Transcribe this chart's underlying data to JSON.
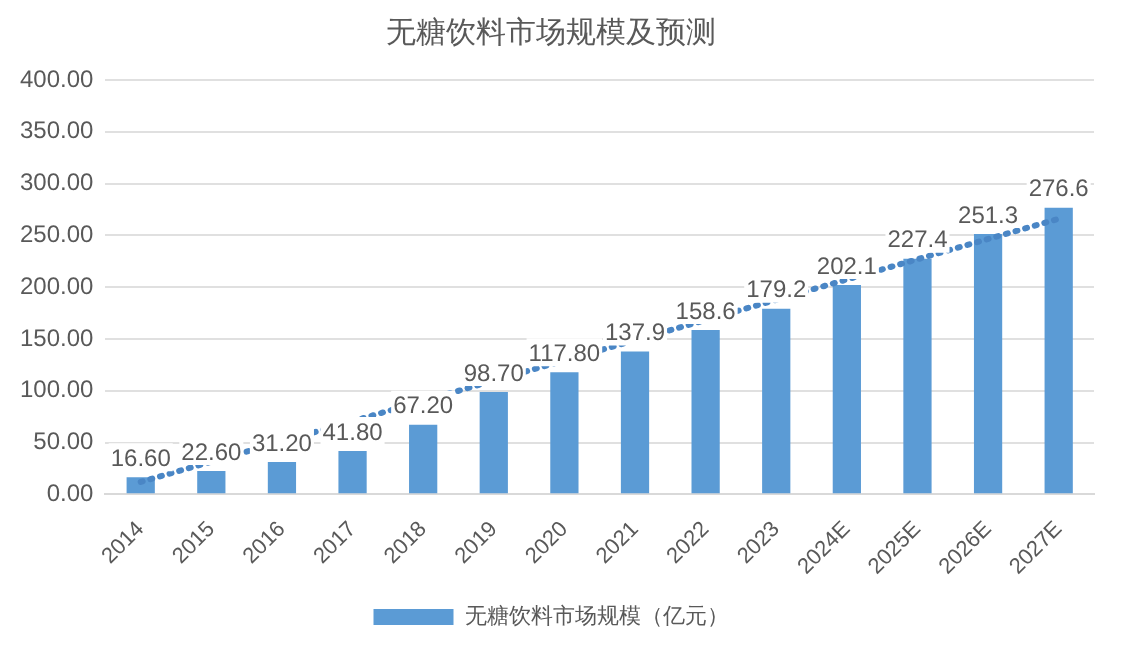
{
  "chart_data": {
    "type": "bar",
    "title": "无糖饮料市场规模及预测",
    "categories": [
      "2014",
      "2015",
      "2016",
      "2017",
      "2018",
      "2019",
      "2020",
      "2021",
      "2022",
      "2023",
      "2024E",
      "2025E",
      "2026E",
      "2027E"
    ],
    "series": [
      {
        "name": "无糖饮料市场规模（亿元）",
        "color": "#5b9bd5",
        "values": [
          16.6,
          22.6,
          31.2,
          41.8,
          67.2,
          98.7,
          117.8,
          137.9,
          158.6,
          179.2,
          202.1,
          227.4,
          251.3,
          276.6
        ],
        "value_labels": [
          "16.60",
          "22.60",
          "31.20",
          "41.80",
          "67.20",
          "98.70",
          "117.80",
          "137.9",
          "158.6",
          "179.2",
          "202.1",
          "227.4",
          "251.3",
          "276.6"
        ]
      },
      {
        "type": "line",
        "color": "#4a86c5",
        "line_style": "dotted",
        "marker": "none",
        "values": [
          12,
          null,
          null,
          null,
          null,
          null,
          null,
          null,
          null,
          null,
          null,
          null,
          null,
          266
        ]
      }
    ],
    "ylim": [
      0,
      400
    ],
    "yticks": [
      {
        "value": 0,
        "label": "0.00"
      },
      {
        "value": 50,
        "label": "50.00"
      },
      {
        "value": 100,
        "label": "100.00"
      },
      {
        "value": 150,
        "label": "150.00"
      },
      {
        "value": 200,
        "label": "200.00"
      },
      {
        "value": 250,
        "label": "250.00"
      },
      {
        "value": 300,
        "label": "300.00"
      },
      {
        "value": 350,
        "label": "350.00"
      },
      {
        "value": 400,
        "label": "400.00"
      }
    ],
    "grid": "y",
    "legend": "bottom"
  }
}
